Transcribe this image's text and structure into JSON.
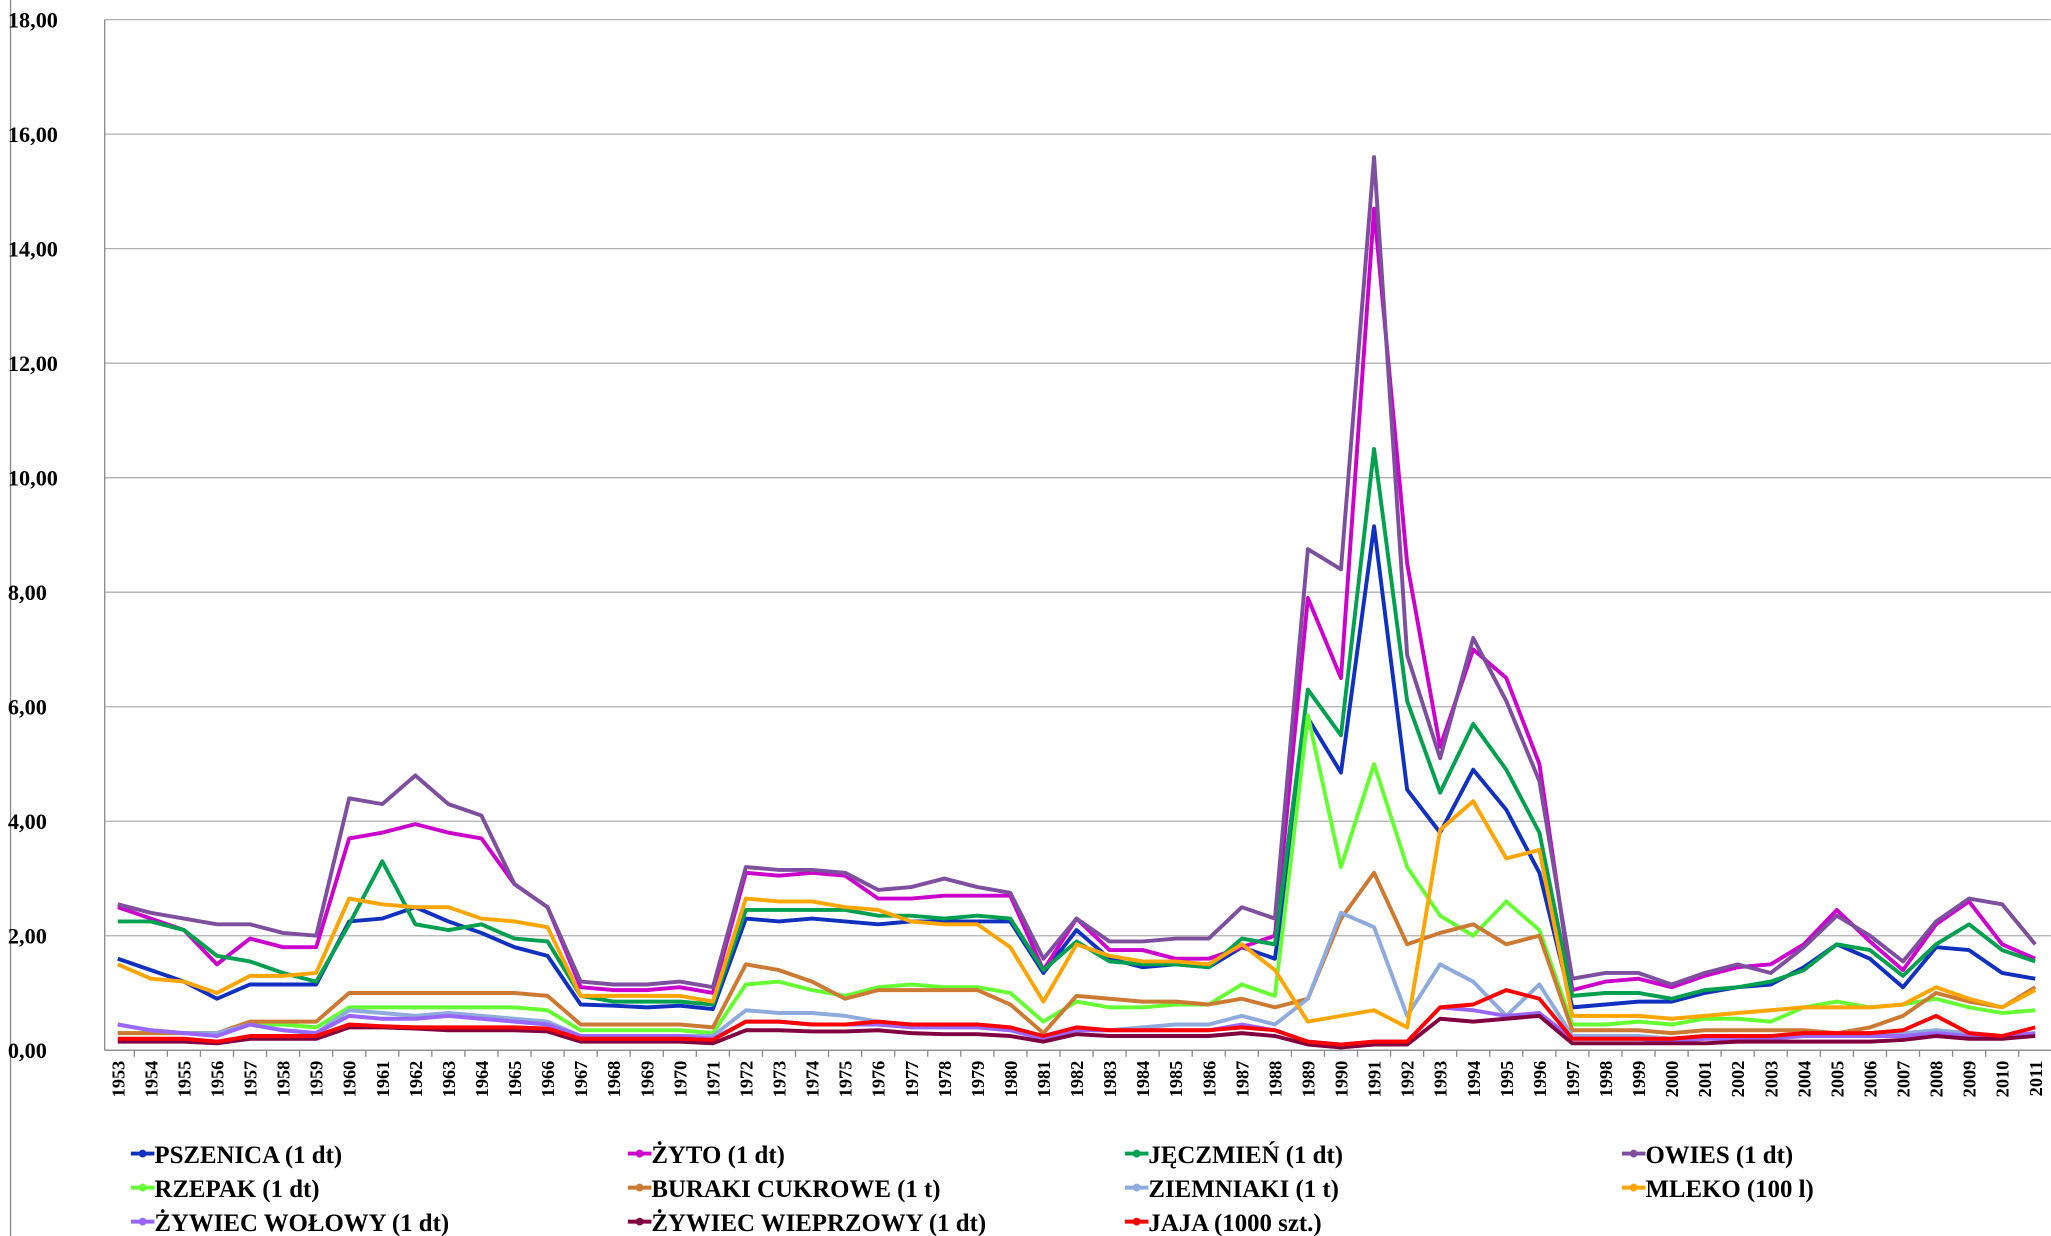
{
  "chart_data": {
    "type": "line",
    "categories": [
      "1953",
      "1954",
      "1955",
      "1956",
      "1957",
      "1958",
      "1959",
      "1960",
      "1961",
      "1962",
      "1963",
      "1964",
      "1965",
      "1966",
      "1967",
      "1968",
      "1969",
      "1970",
      "1971",
      "1972",
      "1973",
      "1974",
      "1975",
      "1976",
      "1977",
      "1978",
      "1979",
      "1980",
      "1981",
      "1982",
      "1983",
      "1984",
      "1985",
      "1986",
      "1987",
      "1988",
      "1989",
      "1990",
      "1991",
      "1992",
      "1993",
      "1994",
      "1995",
      "1996",
      "1997",
      "1998",
      "1999",
      "2000",
      "2001",
      "2002",
      "2003",
      "2004",
      "2005",
      "2006",
      "2007",
      "2008",
      "2009",
      "2010",
      "2011"
    ],
    "ylim": [
      0,
      18
    ],
    "yticks": [
      {
        "value": 0,
        "label": "0,00"
      },
      {
        "value": 2,
        "label": "2,00"
      },
      {
        "value": 4,
        "label": "4,00"
      },
      {
        "value": 6,
        "label": "6,00"
      },
      {
        "value": 8,
        "label": "8,00"
      },
      {
        "value": 10,
        "label": "10,00"
      },
      {
        "value": 12,
        "label": "12,00"
      },
      {
        "value": 14,
        "label": "14,00"
      },
      {
        "value": 16,
        "label": "16,00"
      },
      {
        "value": 18,
        "label": "18,00"
      }
    ],
    "grid": true,
    "series": [
      {
        "name": "PSZENICA (1 dt)",
        "color": "#1030c0",
        "values": [
          1.6,
          1.4,
          1.2,
          0.9,
          1.15,
          1.15,
          1.15,
          2.25,
          2.3,
          2.5,
          2.25,
          2.05,
          1.8,
          1.65,
          0.8,
          0.78,
          0.75,
          0.78,
          0.72,
          2.3,
          2.25,
          2.3,
          2.25,
          2.2,
          2.25,
          2.25,
          2.25,
          2.25,
          1.35,
          2.1,
          1.6,
          1.45,
          1.5,
          1.45,
          1.8,
          1.6,
          5.8,
          4.85,
          9.15,
          4.55,
          3.8,
          4.9,
          4.2,
          3.1,
          0.75,
          0.8,
          0.85,
          0.85,
          1.0,
          1.1,
          1.15,
          1.45,
          1.85,
          1.6,
          1.1,
          1.8,
          1.75,
          1.35,
          1.25
        ]
      },
      {
        "name": "ŻYTO (1 dt)",
        "color": "#cc00cc",
        "values": [
          2.5,
          2.3,
          2.1,
          1.5,
          1.95,
          1.8,
          1.8,
          3.7,
          3.8,
          3.95,
          3.8,
          3.7,
          2.9,
          2.5,
          1.1,
          1.05,
          1.05,
          1.1,
          1.0,
          3.1,
          3.05,
          3.1,
          3.05,
          2.65,
          2.65,
          2.7,
          2.7,
          2.7,
          1.4,
          2.3,
          1.75,
          1.75,
          1.6,
          1.6,
          1.8,
          2.0,
          7.9,
          6.5,
          14.7,
          8.5,
          5.3,
          7.0,
          6.5,
          5.0,
          1.05,
          1.2,
          1.25,
          1.1,
          1.3,
          1.45,
          1.5,
          1.85,
          2.45,
          1.9,
          1.4,
          2.2,
          2.6,
          1.85,
          1.6
        ]
      },
      {
        "name": "JĘCZMIEŃ (1 dt)",
        "color": "#00a050",
        "values": [
          2.25,
          2.25,
          2.1,
          1.65,
          1.55,
          1.35,
          1.2,
          2.2,
          3.3,
          2.2,
          2.1,
          2.2,
          1.95,
          1.9,
          0.95,
          0.85,
          0.85,
          0.85,
          0.8,
          2.45,
          2.45,
          2.45,
          2.45,
          2.35,
          2.35,
          2.3,
          2.35,
          2.3,
          1.4,
          1.9,
          1.55,
          1.5,
          1.5,
          1.45,
          1.95,
          1.85,
          6.3,
          5.5,
          10.5,
          6.1,
          4.5,
          5.7,
          4.9,
          3.8,
          0.95,
          1.0,
          1.0,
          0.9,
          1.05,
          1.1,
          1.2,
          1.4,
          1.85,
          1.75,
          1.3,
          1.85,
          2.2,
          1.75,
          1.55
        ]
      },
      {
        "name": "OWIES (1 dt)",
        "color": "#7f4f9f",
        "values": [
          2.55,
          2.4,
          2.3,
          2.2,
          2.2,
          2.05,
          2.0,
          4.4,
          4.3,
          4.8,
          4.3,
          4.1,
          2.9,
          2.5,
          1.2,
          1.15,
          1.15,
          1.2,
          1.1,
          3.2,
          3.15,
          3.15,
          3.1,
          2.8,
          2.85,
          3.0,
          2.85,
          2.75,
          1.6,
          2.3,
          1.9,
          1.9,
          1.95,
          1.95,
          2.5,
          2.3,
          8.75,
          8.4,
          15.6,
          6.9,
          5.1,
          7.2,
          6.1,
          4.7,
          1.25,
          1.35,
          1.35,
          1.15,
          1.35,
          1.5,
          1.35,
          1.8,
          2.35,
          2.0,
          1.55,
          2.25,
          2.65,
          2.55,
          1.85
        ]
      },
      {
        "name": "RZEPAK (1 dt)",
        "color": "#66ff33",
        "values": [
          0.3,
          0.3,
          0.3,
          0.3,
          0.45,
          0.45,
          0.4,
          0.75,
          0.75,
          0.75,
          0.75,
          0.75,
          0.75,
          0.7,
          0.35,
          0.35,
          0.35,
          0.35,
          0.3,
          1.15,
          1.2,
          1.05,
          0.95,
          1.1,
          1.15,
          1.1,
          1.1,
          1.0,
          0.5,
          0.85,
          0.75,
          0.75,
          0.8,
          0.8,
          1.15,
          0.95,
          5.85,
          3.2,
          5.0,
          3.2,
          2.35,
          2.0,
          2.6,
          2.1,
          0.45,
          0.45,
          0.5,
          0.45,
          0.55,
          0.55,
          0.5,
          0.75,
          0.85,
          0.75,
          0.8,
          0.9,
          0.75,
          0.65,
          0.7
        ]
      },
      {
        "name": "BURAKI CUKROWE (1 t)",
        "color": "#cc7a33",
        "values": [
          0.3,
          0.3,
          0.3,
          0.3,
          0.5,
          0.5,
          0.5,
          1.0,
          1.0,
          1.0,
          1.0,
          1.0,
          1.0,
          0.95,
          0.45,
          0.45,
          0.45,
          0.45,
          0.4,
          1.5,
          1.4,
          1.2,
          0.9,
          1.05,
          1.05,
          1.05,
          1.05,
          0.8,
          0.3,
          0.95,
          0.9,
          0.85,
          0.85,
          0.8,
          0.9,
          0.75,
          0.9,
          2.3,
          3.1,
          1.85,
          2.05,
          2.2,
          1.85,
          2.0,
          0.35,
          0.35,
          0.35,
          0.3,
          0.35,
          0.35,
          0.35,
          0.35,
          0.3,
          0.4,
          0.6,
          1.0,
          0.85,
          0.75,
          1.1
        ]
      },
      {
        "name": "ZIEMNIAKI (1 t)",
        "color": "#8faadc",
        "values": [
          0.45,
          0.35,
          0.3,
          0.3,
          0.45,
          0.35,
          0.3,
          0.7,
          0.65,
          0.6,
          0.65,
          0.6,
          0.55,
          0.5,
          0.25,
          0.25,
          0.25,
          0.25,
          0.25,
          0.7,
          0.65,
          0.65,
          0.6,
          0.5,
          0.45,
          0.4,
          0.4,
          0.35,
          0.2,
          0.35,
          0.35,
          0.4,
          0.45,
          0.45,
          0.6,
          0.45,
          0.9,
          2.4,
          2.15,
          0.6,
          1.5,
          1.2,
          0.6,
          1.15,
          0.25,
          0.25,
          0.25,
          0.2,
          0.25,
          0.25,
          0.25,
          0.25,
          0.3,
          0.3,
          0.3,
          0.35,
          0.3,
          0.25,
          0.3
        ]
      },
      {
        "name": "MLEKO (100 l)",
        "color": "#ffa500",
        "values": [
          1.5,
          1.25,
          1.2,
          1.0,
          1.3,
          1.3,
          1.35,
          2.65,
          2.55,
          2.5,
          2.5,
          2.3,
          2.25,
          2.15,
          0.95,
          0.95,
          0.95,
          0.95,
          0.85,
          2.65,
          2.6,
          2.6,
          2.5,
          2.45,
          2.25,
          2.2,
          2.2,
          1.8,
          0.85,
          1.85,
          1.65,
          1.55,
          1.55,
          1.5,
          1.85,
          1.4,
          0.5,
          0.6,
          0.7,
          0.4,
          3.85,
          4.35,
          3.35,
          3.5,
          0.6,
          0.6,
          0.6,
          0.55,
          0.6,
          0.65,
          0.7,
          0.75,
          0.75,
          0.75,
          0.8,
          1.1,
          0.9,
          0.75,
          1.05
        ]
      },
      {
        "name": "ŻYWIEC WOŁOWY (1 dt)",
        "color": "#9966ff",
        "values": [
          0.45,
          0.35,
          0.3,
          0.25,
          0.45,
          0.35,
          0.3,
          0.6,
          0.55,
          0.55,
          0.6,
          0.55,
          0.5,
          0.45,
          0.25,
          0.25,
          0.25,
          0.25,
          0.2,
          0.5,
          0.5,
          0.45,
          0.45,
          0.45,
          0.4,
          0.4,
          0.4,
          0.35,
          0.2,
          0.35,
          0.35,
          0.35,
          0.35,
          0.35,
          0.45,
          0.35,
          0.15,
          0.1,
          0.15,
          0.15,
          0.75,
          0.7,
          0.6,
          0.65,
          0.2,
          0.2,
          0.2,
          0.15,
          0.2,
          0.2,
          0.2,
          0.25,
          0.25,
          0.25,
          0.25,
          0.3,
          0.25,
          0.25,
          0.3
        ]
      },
      {
        "name": "ŻYWIEC WIEPRZOWY (1 dt)",
        "color": "#800040",
        "values": [
          0.15,
          0.15,
          0.15,
          0.12,
          0.2,
          0.2,
          0.2,
          0.4,
          0.4,
          0.38,
          0.35,
          0.35,
          0.35,
          0.33,
          0.15,
          0.15,
          0.15,
          0.15,
          0.12,
          0.35,
          0.35,
          0.33,
          0.33,
          0.35,
          0.3,
          0.28,
          0.28,
          0.25,
          0.15,
          0.28,
          0.25,
          0.25,
          0.25,
          0.25,
          0.3,
          0.25,
          0.1,
          0.05,
          0.1,
          0.1,
          0.55,
          0.5,
          0.55,
          0.6,
          0.12,
          0.12,
          0.12,
          0.12,
          0.12,
          0.15,
          0.15,
          0.15,
          0.15,
          0.15,
          0.18,
          0.25,
          0.2,
          0.2,
          0.25
        ]
      },
      {
        "name": "JAJA (1000 szt.)",
        "color": "#ff0000",
        "values": [
          0.2,
          0.2,
          0.2,
          0.15,
          0.25,
          0.25,
          0.25,
          0.45,
          0.42,
          0.4,
          0.4,
          0.4,
          0.4,
          0.38,
          0.2,
          0.2,
          0.2,
          0.2,
          0.18,
          0.5,
          0.5,
          0.45,
          0.45,
          0.5,
          0.45,
          0.45,
          0.45,
          0.4,
          0.25,
          0.4,
          0.35,
          0.35,
          0.35,
          0.35,
          0.4,
          0.35,
          0.15,
          0.1,
          0.15,
          0.15,
          0.75,
          0.8,
          1.05,
          0.9,
          0.2,
          0.2,
          0.2,
          0.2,
          0.25,
          0.25,
          0.25,
          0.3,
          0.3,
          0.3,
          0.35,
          0.6,
          0.3,
          0.25,
          0.4
        ]
      }
    ]
  }
}
